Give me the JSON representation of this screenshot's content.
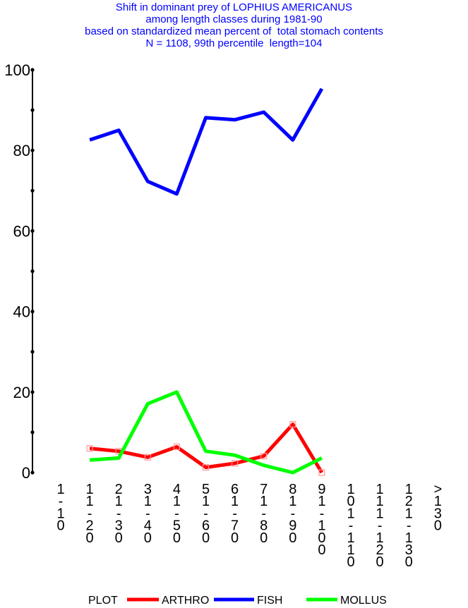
{
  "chart_data": {
    "type": "line",
    "title_lines": [
      "Shift in dominant prey of LOPHIUS AMERICANUS",
      "among length classes during 1981-90",
      "based on standardized mean percent of  total stomach contents",
      "N = 1108, 99th percentile  length=104"
    ],
    "categories": [
      "1-10",
      "11-20",
      "21-30",
      "31-40",
      "41-50",
      "51-60",
      "61-70",
      "71-80",
      "81-90",
      "91-100",
      "101-110",
      "111-120",
      "121-130",
      ">130"
    ],
    "ylim": [
      0,
      100
    ],
    "yticks": [
      0,
      20,
      40,
      60,
      80,
      100
    ],
    "series": [
      {
        "name": "ARTHRO",
        "color": "#ff0000",
        "markers": true,
        "values": [
          null,
          6,
          5.3,
          3.8,
          6.4,
          1.3,
          2.3,
          4.1,
          12,
          0,
          null,
          null,
          null,
          null
        ]
      },
      {
        "name": "FISH",
        "color": "#0000ff",
        "markers": false,
        "values": [
          null,
          82.6,
          85,
          72.3,
          69.2,
          88.1,
          87.6,
          89.5,
          82.6,
          95.3,
          null,
          null,
          null,
          null
        ]
      },
      {
        "name": "MOLLUS",
        "color": "#00ff00",
        "markers": false,
        "values": [
          null,
          3.1,
          3.6,
          17.1,
          20,
          5.3,
          4.3,
          1.8,
          0,
          3.6,
          null,
          null,
          null,
          null
        ]
      }
    ],
    "legend": {
      "placement": "bottom",
      "prefix": "PLOT",
      "entries": [
        "ARTHRO",
        "FISH",
        "MOLLUS"
      ]
    }
  }
}
